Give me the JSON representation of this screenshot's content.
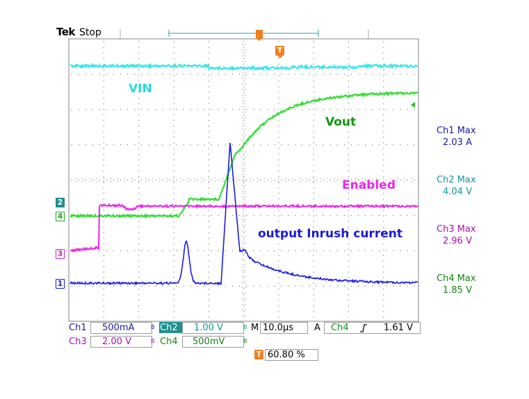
{
  "header": {
    "brand": "Tek",
    "status": "Stop"
  },
  "trigger_marker": "T",
  "icons": {
    "trigger_top": "trigger-position-icon",
    "level_arrow": "trigger-level-arrow-icon",
    "bw_limit": "bandwidth-limit-icon",
    "rising_edge": "rising-edge-icon"
  },
  "channels": {
    "ch1": {
      "marker": "1",
      "color": "#1a1ad6"
    },
    "ch2": {
      "marker": "2",
      "color": "#1fa0a0"
    },
    "ch3": {
      "marker": "3",
      "color": "#cc22cc"
    },
    "ch4": {
      "marker": "4",
      "color": "#22bb22"
    }
  },
  "trace_labels": {
    "vin": "VIN",
    "vout": "Vout",
    "enabled": "Enabled",
    "inrush": "output Inrush current"
  },
  "trace_colors": {
    "vin": "#33e6e6",
    "vout": "#33dd33",
    "enabled": "#ee22ee",
    "inrush": "#1a1ae6",
    "label_vin": "#22dddd",
    "label_vout": "#119911",
    "label_enabled": "#ee22ee",
    "label_inrush": "#1a1ad6"
  },
  "measurements": [
    {
      "label": "Ch1 Max",
      "value": "2.03 A",
      "color": "#1a1a99"
    },
    {
      "label": "Ch2 Max",
      "value": "4.04 V",
      "color": "#119999"
    },
    {
      "label": "Ch3 Max",
      "value": "2.96 V",
      "color": "#aa11aa"
    },
    {
      "label": "Ch4 Max",
      "value": "1.85 V",
      "color": "#118811"
    }
  ],
  "status_bar": {
    "ch1_name": "Ch1",
    "ch1_scale": "500mA",
    "ch2_name": "Ch2",
    "ch2_scale": "1.00 V",
    "ch3_name": "Ch3",
    "ch3_scale": "2.00 V",
    "ch4_name": "Ch4",
    "ch4_scale": "500mV",
    "bw_mark": "B",
    "timebase_prefix": "M",
    "timebase": "10.0µs",
    "acq_mode": "A",
    "trig_source": "Ch4",
    "trig_level": "1.61 V",
    "trig_position": "60.80 %"
  }
}
